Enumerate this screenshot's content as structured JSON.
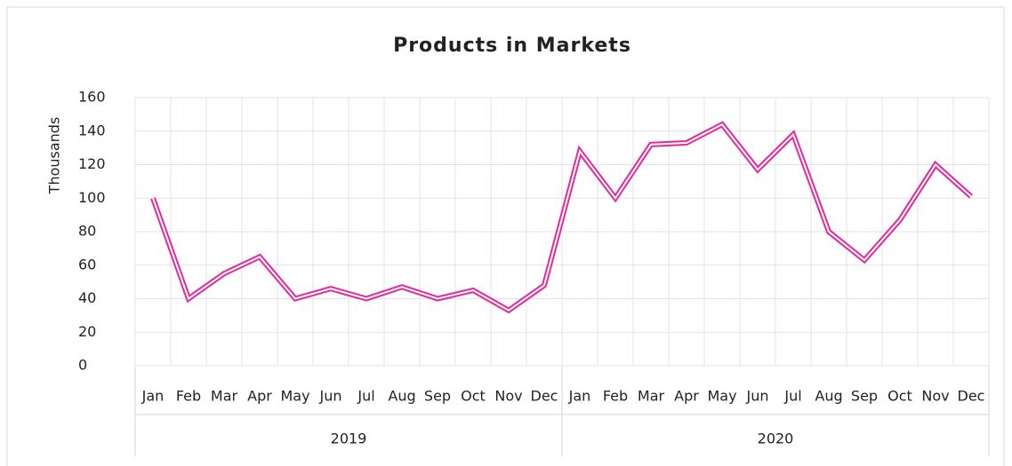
{
  "chart_data": {
    "type": "line",
    "title": "Products in Markets",
    "y_label": "Thousands",
    "categories": [
      "Jan",
      "Feb",
      "Mar",
      "Apr",
      "May",
      "Jun",
      "Jul",
      "Aug",
      "Sep",
      "Oct",
      "Nov",
      "Dec",
      "Jan",
      "Feb",
      "Mar",
      "Apr",
      "May",
      "Jun",
      "Jul",
      "Aug",
      "Sep",
      "Oct",
      "Nov",
      "Dec"
    ],
    "groups": [
      "2019",
      "2020"
    ],
    "series": [
      {
        "name": "Products",
        "color": "#e6289a",
        "values": [
          100,
          40,
          55,
          65,
          40,
          46,
          40,
          47,
          40,
          45,
          33,
          48,
          128,
          100,
          132,
          133,
          144,
          117,
          138,
          80,
          63,
          87,
          120,
          101
        ]
      }
    ],
    "ylim": [
      0,
      160
    ],
    "yticks": [
      0,
      20,
      40,
      60,
      80,
      100,
      120,
      140,
      160
    ],
    "grid": true
  }
}
